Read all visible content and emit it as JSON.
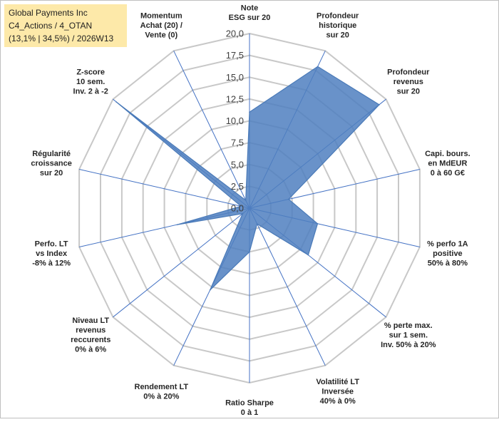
{
  "chart_data": {
    "type": "radar",
    "title_lines": [
      "Global Payments Inc",
      "C4_Actions / 4_OTAN",
      "(13,1% | 34,5%) / 2026W13"
    ],
    "rmin": 0,
    "rmax": 20,
    "tick_step": 2.5,
    "tick_labels": [
      "0,0",
      "2,5",
      "5,0",
      "7,5",
      "10,0",
      "12,5",
      "15,0",
      "17,5",
      "20,0"
    ],
    "axes": [
      {
        "label": [
          "Note",
          "ESG sur 20"
        ]
      },
      {
        "label": [
          "Profondeur",
          "historique",
          "sur 20"
        ]
      },
      {
        "label": [
          "Profondeur",
          "revenus",
          "sur 20"
        ]
      },
      {
        "label": [
          "Capi. bours.",
          "en MdEUR",
          "0 à 60 G€"
        ]
      },
      {
        "label": [
          "% perfo 1A",
          "positive",
          "50% à 80%"
        ]
      },
      {
        "label": [
          "% perte max.",
          "sur 1 sem.",
          "Inv. 50% à 20%"
        ]
      },
      {
        "label": [
          "Volatilité LT",
          "Inversée",
          "40% à 0%"
        ]
      },
      {
        "label": [
          "Ratio Sharpe",
          "0 à 1"
        ]
      },
      {
        "label": [
          "Rendement LT",
          "0% à 20%"
        ]
      },
      {
        "label": [
          "Niveau LT",
          "revenus",
          "reccurents",
          "0% à 6%"
        ]
      },
      {
        "label": [
          "Perfo. LT",
          "vs Index",
          "-8% à 12%"
        ]
      },
      {
        "label": [
          "Régularité",
          "croissance",
          "sur 20"
        ]
      },
      {
        "label": [
          "Z-score",
          "10 sem.",
          "Inv. 2 à -2"
        ]
      },
      {
        "label": [
          "Momentum",
          "Achat (20) /",
          "Vente (0)"
        ]
      }
    ],
    "series": [
      {
        "name": "Global Payments Inc",
        "values": [
          11.0,
          18.0,
          19.0,
          4.6,
          8.0,
          8.6,
          2.0,
          5.0,
          10.4,
          1.0,
          8.5,
          1.0,
          19.5,
          1.0
        ],
        "color": "#4f7fbf"
      }
    ],
    "colors": {
      "area_fill": "#4f7fbf",
      "area_stroke": "#4a7ab8",
      "grid": "#c8c8c8",
      "spokes": "#4472c4",
      "title_bg": "#fde9a9"
    }
  }
}
